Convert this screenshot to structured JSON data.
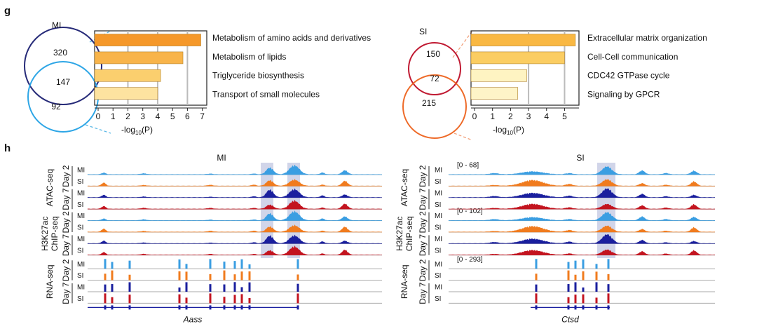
{
  "panel_g": {
    "label": "g",
    "venns": [
      {
        "title": "MI",
        "counts": [
          320,
          147,
          92
        ]
      },
      {
        "title": "SI",
        "counts": [
          150,
          72,
          215
        ]
      }
    ],
    "xlabel": {
      "main": "-log",
      "sub": "10",
      "tail": "(P)"
    }
  },
  "chart_data": [
    {
      "type": "hbar",
      "categories": [
        "Metabolism of amino acids and derivatives",
        "Metabolism of lipids",
        "Triglyceride biosynthesis",
        "Transport of small molecules"
      ],
      "values": [
        6.9,
        5.7,
        4.2,
        4.0
      ],
      "colors": [
        "#f5982a",
        "#f8b44a",
        "#fbcf6e",
        "#fde3a0"
      ],
      "xlim": [
        0,
        7.3
      ],
      "xticks": [
        0,
        1,
        2,
        3,
        4,
        5,
        6,
        7
      ],
      "grid_ticks": [
        2,
        4,
        6
      ]
    },
    {
      "type": "hbar",
      "categories": [
        "Extracellular matrix organization",
        "Cell-Cell communication",
        "CDC42 GTPase cycle",
        "Signaling by GPCR"
      ],
      "values": [
        5.6,
        5.0,
        2.9,
        2.4
      ],
      "colors": [
        "#f9b843",
        "#fbcd62",
        "#fef4c2",
        "#fef4c8"
      ],
      "xlim": [
        0,
        5.8
      ],
      "xticks": [
        0,
        1,
        2,
        3,
        4,
        5
      ],
      "grid_ticks": [
        3,
        5
      ]
    }
  ],
  "panel_h": {
    "label": "h",
    "loci": [
      {
        "title": "MI",
        "gene": "Aass"
      },
      {
        "title": "SI",
        "gene": "Ctsd",
        "ranges": [
          "[0 - 68]",
          "[0 - 102]",
          "[0 - 293]"
        ]
      }
    ],
    "assays": [
      [
        "ATAC-seq"
      ],
      [
        "H3K27ac",
        "ChIP-seq"
      ],
      [
        "RNA-seq"
      ]
    ],
    "days": [
      "Day 2",
      "Day 7"
    ],
    "samples": [
      "MI",
      "SI"
    ],
    "colors": [
      [
        "#3a9ee2",
        "#f07b1e"
      ],
      [
        "#1a1f9e",
        "#c3141f"
      ]
    ]
  }
}
